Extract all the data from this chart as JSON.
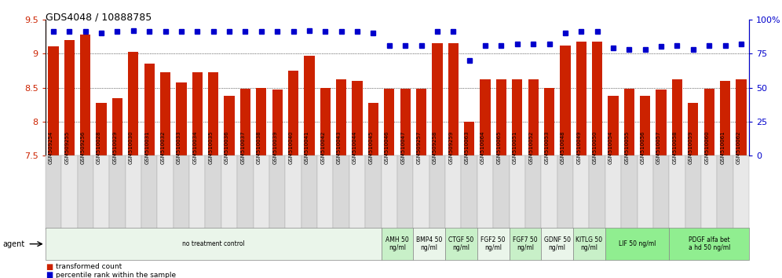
{
  "title": "GDS4048 / 10888785",
  "samples": [
    "GSM509254",
    "GSM509255",
    "GSM509256",
    "GSM510028",
    "GSM510029",
    "GSM510030",
    "GSM510031",
    "GSM510032",
    "GSM510033",
    "GSM510034",
    "GSM510035",
    "GSM510036",
    "GSM510037",
    "GSM510038",
    "GSM510039",
    "GSM510040",
    "GSM510041",
    "GSM510042",
    "GSM510043",
    "GSM510044",
    "GSM510045",
    "GSM510046",
    "GSM510047",
    "GSM509257",
    "GSM509258",
    "GSM509259",
    "GSM510063",
    "GSM510064",
    "GSM510065",
    "GSM510051",
    "GSM510052",
    "GSM510053",
    "GSM510048",
    "GSM510049",
    "GSM510050",
    "GSM510054",
    "GSM510055",
    "GSM510056",
    "GSM510057",
    "GSM510058",
    "GSM510059",
    "GSM510060",
    "GSM510061",
    "GSM510062"
  ],
  "bar_values": [
    9.1,
    9.2,
    9.28,
    8.28,
    8.35,
    9.02,
    8.85,
    8.72,
    8.57,
    8.72,
    8.72,
    8.38,
    8.48,
    8.5,
    8.47,
    8.75,
    8.97,
    8.5,
    8.62,
    8.6,
    8.28,
    8.48,
    8.48,
    8.48,
    9.15,
    9.15,
    8.0,
    8.62,
    8.62,
    8.62,
    8.62,
    8.5,
    9.12,
    9.17,
    9.17,
    8.38,
    8.48,
    8.38,
    8.47,
    8.62,
    8.28,
    8.48,
    8.6,
    8.62
  ],
  "percentile_values": [
    91,
    91,
    91,
    90,
    91,
    92,
    91,
    91,
    91,
    91,
    91,
    91,
    91,
    91,
    91,
    91,
    92,
    91,
    91,
    91,
    90,
    81,
    81,
    81,
    91,
    91,
    70,
    81,
    81,
    82,
    82,
    82,
    90,
    91,
    91,
    79,
    78,
    78,
    80,
    81,
    78,
    81,
    81,
    82
  ],
  "agents": [
    {
      "label": "no treatment control",
      "start": 0,
      "end": 21,
      "color": "#eaf5ea"
    },
    {
      "label": "AMH 50\nng/ml",
      "start": 21,
      "end": 23,
      "color": "#c8f0c8"
    },
    {
      "label": "BMP4 50\nng/ml",
      "start": 23,
      "end": 25,
      "color": "#eaf5ea"
    },
    {
      "label": "CTGF 50\nng/ml",
      "start": 25,
      "end": 27,
      "color": "#c8f0c8"
    },
    {
      "label": "FGF2 50\nng/ml",
      "start": 27,
      "end": 29,
      "color": "#eaf5ea"
    },
    {
      "label": "FGF7 50\nng/ml",
      "start": 29,
      "end": 31,
      "color": "#c8f0c8"
    },
    {
      "label": "GDNF 50\nng/ml",
      "start": 31,
      "end": 33,
      "color": "#eaf5ea"
    },
    {
      "label": "KITLG 50\nng/ml",
      "start": 33,
      "end": 35,
      "color": "#c8f0c8"
    },
    {
      "label": "LIF 50 ng/ml",
      "start": 35,
      "end": 39,
      "color": "#90ee90"
    },
    {
      "label": "PDGF alfa bet\na hd 50 ng/ml",
      "start": 39,
      "end": 44,
      "color": "#90ee90"
    }
  ],
  "bar_color": "#cc2200",
  "dot_color": "#0000cc",
  "ylim_left": [
    7.5,
    9.5
  ],
  "ylim_right": [
    0,
    100
  ],
  "yticks_left": [
    7.5,
    8.0,
    8.5,
    9.0,
    9.5
  ],
  "yticks_right": [
    0,
    25,
    50,
    75,
    100
  ],
  "grid_values": [
    8.0,
    8.5,
    9.0
  ],
  "background_color": "#ffffff"
}
